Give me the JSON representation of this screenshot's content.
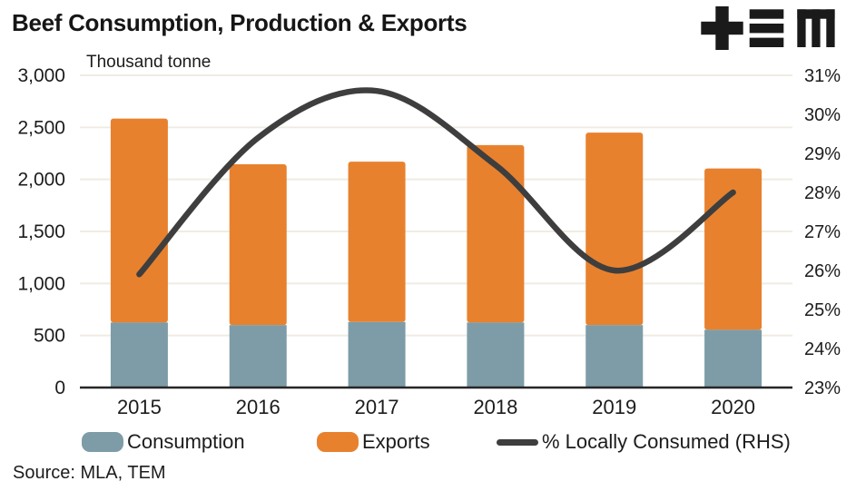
{
  "header": {
    "title": "Beef Consumption, Production & Exports",
    "units_label": "Thousand tonne",
    "logo_alt": "TEM"
  },
  "footer": {
    "source": "Source: MLA, TEM"
  },
  "colors": {
    "consumption": "#7D9CA7",
    "exports": "#E8812E",
    "line": "#3E3E3E",
    "grid": "#EFECE2",
    "axis": "#262626",
    "text": "#1C1C1C",
    "logo": "#1A1A1A",
    "background": "#FFFFFF"
  },
  "chart_data": {
    "type": "bar",
    "subtype": "stacked-bars-with-line-overlay",
    "title": "Beef Consumption, Production & Exports",
    "units_label": "Thousand tonne",
    "categories": [
      "2015",
      "2016",
      "2017",
      "2018",
      "2019",
      "2020"
    ],
    "series": [
      {
        "name": "Consumption",
        "type": "bar",
        "stack": "production",
        "color": "#7D9CA7",
        "values": [
          625,
          600,
          630,
          625,
          600,
          555
        ]
      },
      {
        "name": "Exports",
        "type": "bar",
        "stack": "production",
        "color": "#E8812E",
        "values": [
          1960,
          1545,
          1540,
          1705,
          1850,
          1550
        ]
      },
      {
        "name": "% Locally Consumed (RHS)",
        "type": "line",
        "axis": "right",
        "color": "#3E3E3E",
        "values": [
          25.9,
          29.4,
          30.6,
          28.7,
          26.0,
          28.0
        ]
      }
    ],
    "stack_totals": [
      2585,
      2145,
      2170,
      2330,
      2450,
      2105
    ],
    "left_axis": {
      "label": "Thousand tonne",
      "min": 0,
      "max": 3000,
      "step": 500,
      "tick_labels_top_to_bottom": [
        "3,000",
        "2,500",
        "2,000",
        "1,500",
        "1,000",
        "500",
        "0"
      ]
    },
    "right_axis": {
      "min": 23,
      "max": 31,
      "step": 1,
      "tick_labels_top_to_bottom": [
        "31%",
        "30%",
        "29%",
        "28%",
        "27%",
        "26%",
        "25%",
        "24%",
        "23%"
      ]
    },
    "grid": true,
    "legend_position": "bottom",
    "smooth_line": true
  }
}
